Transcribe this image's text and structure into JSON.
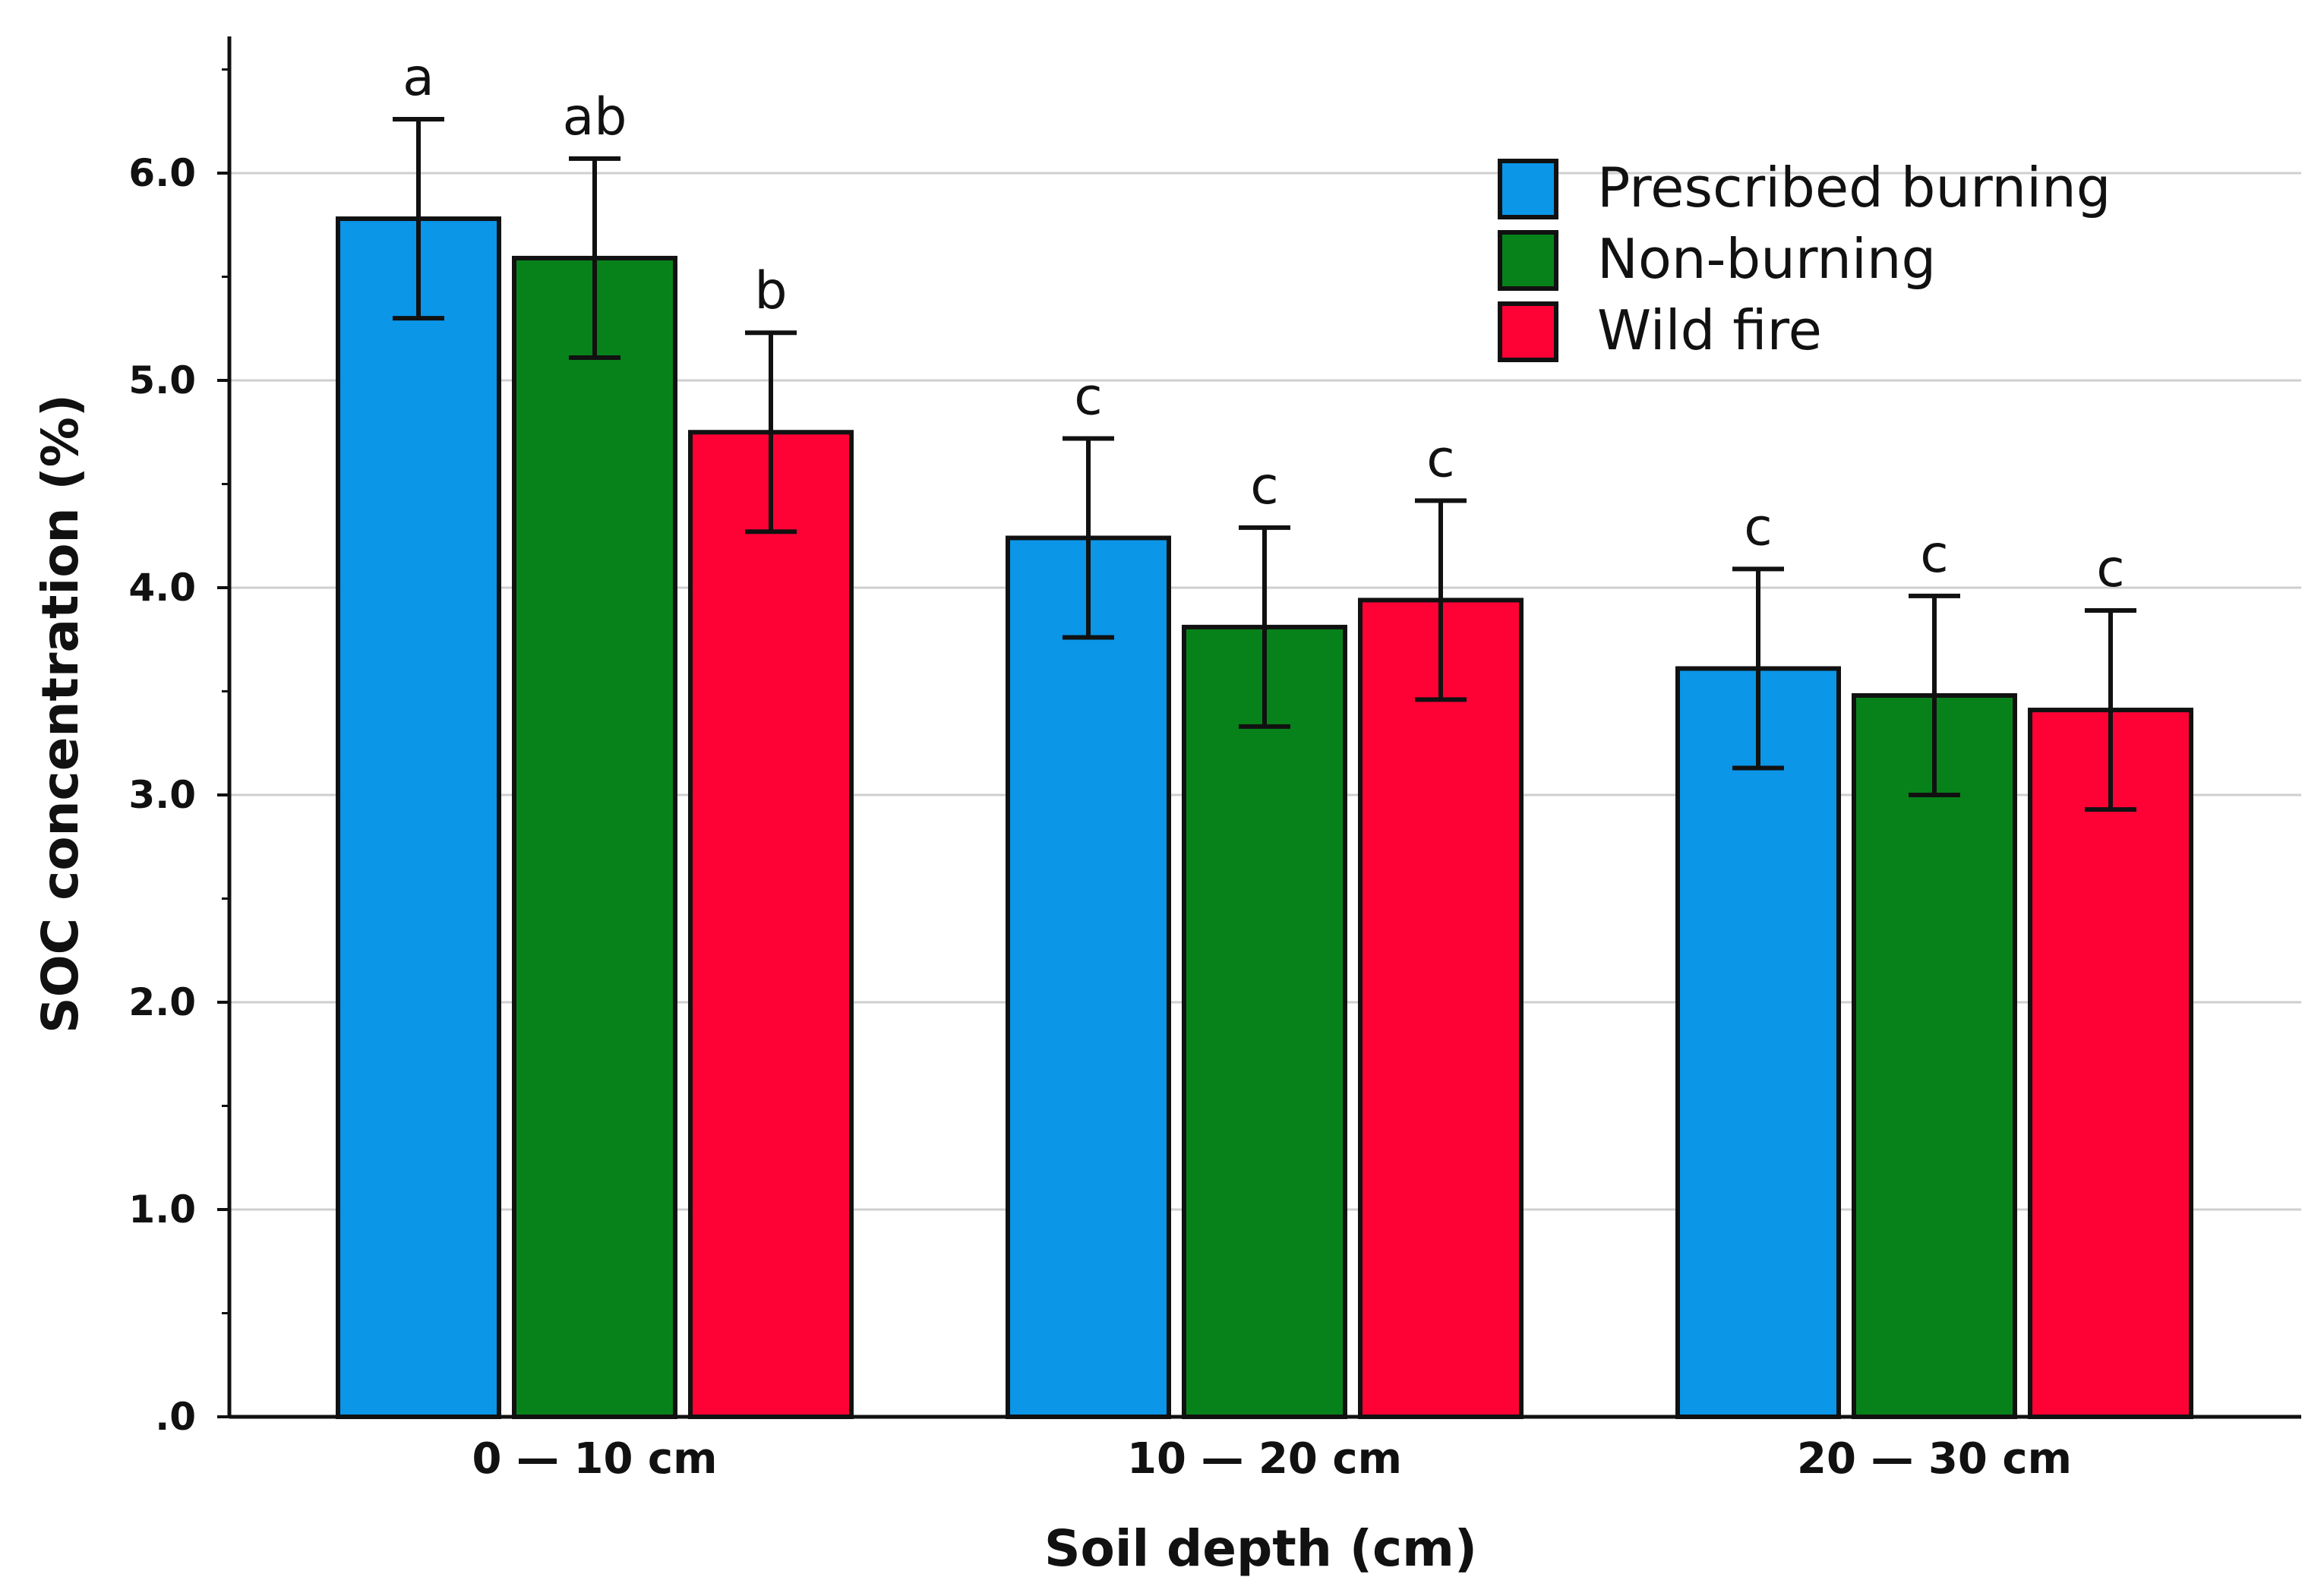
{
  "chart_data": {
    "type": "bar",
    "title": "",
    "xlabel": "Soil depth (cm)",
    "ylabel": "SOC concentration (%)",
    "ylim": [
      0,
      6.6
    ],
    "yticks": [
      {
        "value": 0,
        "label": ".0"
      },
      {
        "value": 1,
        "label": "1.0"
      },
      {
        "value": 2,
        "label": "2.0"
      },
      {
        "value": 3,
        "label": "3.0"
      },
      {
        "value": 4,
        "label": "4.0"
      },
      {
        "value": 5,
        "label": "5.0"
      },
      {
        "value": 6,
        "label": "6.0"
      }
    ],
    "grid": true,
    "legend_position": "top-right",
    "categories": [
      "0 — 10 cm",
      "10 — 20 cm",
      "20 — 30 cm"
    ],
    "series": [
      {
        "name": "Prescribed burning",
        "color": "#0b96e8",
        "values": [
          5.78,
          4.24,
          3.61
        ],
        "errors": [
          0.48,
          0.48,
          0.48
        ],
        "letters": [
          "a",
          "c",
          "c"
        ]
      },
      {
        "name": "Non-burning",
        "color": "#07821a",
        "values": [
          5.59,
          3.81,
          3.48
        ],
        "errors": [
          0.48,
          0.48,
          0.48
        ],
        "letters": [
          "ab",
          "c",
          "c"
        ]
      },
      {
        "name": "Wild fire",
        "color": "#fe0236",
        "values": [
          4.75,
          3.94,
          3.41
        ],
        "errors": [
          0.48,
          0.48,
          0.48
        ],
        "letters": [
          "b",
          "c",
          "c"
        ]
      }
    ]
  }
}
